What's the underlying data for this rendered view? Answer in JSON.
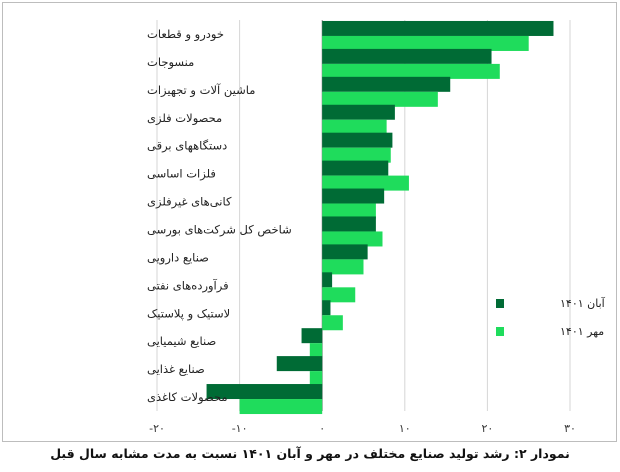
{
  "caption": "نمودار ۲: رشد تولید صنایع مختلف در مهر و آبان ۱۴۰۱ نسبت به مدت مشابه سال قبل",
  "chart_data": {
    "type": "bar",
    "orientation": "horizontal",
    "title": "",
    "xlabel": "",
    "ylabel": "",
    "xlim": [
      -20,
      30
    ],
    "grid": true,
    "legend_position": "right",
    "x_ticks": [
      -20,
      -10,
      0,
      10,
      20,
      30
    ],
    "x_tick_labels": [
      "-۲۰",
      "-۱۰",
      "۰",
      "۱۰",
      "۲۰",
      "۳۰"
    ],
    "categories": [
      "خودرو و قطعات",
      "منسوجات",
      "ماشین آلات و تجهیزات",
      "محصولات فلزی",
      "دستگاههای برقی",
      "فلزات اساسی",
      "کانی‌های غیرفلزی",
      "شاخص کل شرکت‌های بورسی",
      "صنایع دارویی",
      "فرآورده‌های نفتی",
      "لاستیک و پلاستیک",
      "صنایع شیمیایی",
      "صنایع غذایی",
      "محصولات کاغذی"
    ],
    "series": [
      {
        "name": "آبان ۱۴۰۱",
        "color": "#006b35",
        "values": [
          28,
          20.5,
          15.5,
          8.8,
          8.5,
          8,
          7.5,
          6.5,
          5.5,
          1.2,
          1,
          -2.5,
          -5.5,
          -14
        ]
      },
      {
        "name": "مهر ۱۴۰۱",
        "color": "#1fdc5c",
        "values": [
          25,
          21.5,
          14,
          7.8,
          8.3,
          10.5,
          6.5,
          7.3,
          5,
          4,
          2.5,
          -1.5,
          -1.5,
          -10
        ]
      }
    ]
  }
}
